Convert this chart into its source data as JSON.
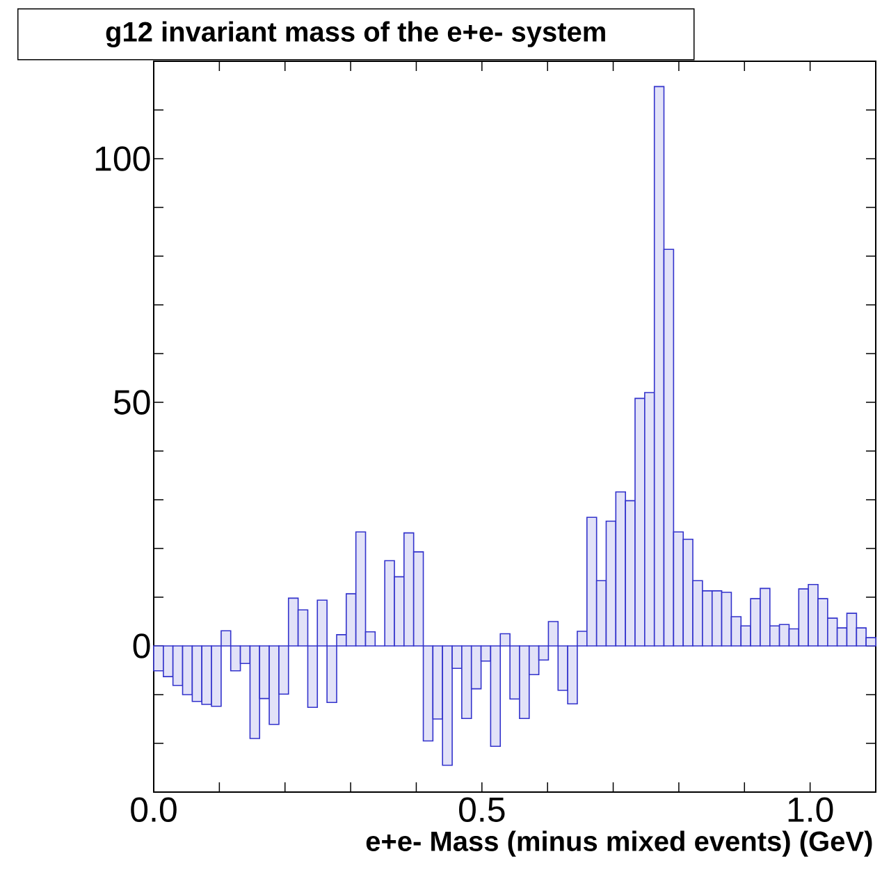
{
  "chart_data": {
    "type": "histogram",
    "title": "g12 invariant mass of the e+e- system",
    "xlabel": "e+e- Mass (minus mixed events) (GeV)",
    "bins": [
      0.0,
      0.0147,
      0.0293,
      0.044,
      0.0587,
      0.0733,
      0.088,
      0.1027,
      0.1173,
      0.132,
      0.1467,
      0.1613,
      0.176,
      0.1907,
      0.2053,
      0.22,
      0.2347,
      0.2493,
      0.264,
      0.2787,
      0.2933,
      0.308,
      0.3227,
      0.3373,
      0.352,
      0.3667,
      0.3813,
      0.396,
      0.4107,
      0.4253,
      0.44,
      0.4547,
      0.4693,
      0.484,
      0.4987,
      0.5133,
      0.528,
      0.5427,
      0.5573,
      0.572,
      0.5867,
      0.6013,
      0.616,
      0.6307,
      0.6453,
      0.66,
      0.6747,
      0.6893,
      0.704,
      0.7187,
      0.7333,
      0.748,
      0.7627,
      0.7773,
      0.792,
      0.8067,
      0.8213,
      0.836,
      0.8507,
      0.8653,
      0.88,
      0.8947,
      0.9093,
      0.924,
      0.9387,
      0.9533,
      0.968,
      0.9827,
      0.9973,
      1.012,
      1.0267,
      1.0413,
      1.056,
      1.0707,
      1.0853,
      1.1
    ],
    "values": [
      -5.1,
      -6.3,
      -8.1,
      -10,
      -11.4,
      -12,
      -12.4,
      3.1,
      -5.1,
      -3.6,
      -19,
      -10.8,
      -16.1,
      -9.9,
      9.8,
      7.4,
      -12.6,
      9.4,
      -11.6,
      2.3,
      10.7,
      23.4,
      2.9,
      0,
      17.5,
      14.2,
      23.2,
      19.3,
      -19.5,
      -15,
      -24.5,
      -4.6,
      -14.9,
      -8.8,
      -3.1,
      -20.6,
      2.5,
      -10.9,
      -14.9,
      -5.9,
      -2.9,
      5,
      -9.1,
      -11.9,
      3,
      26.4,
      13.4,
      25.6,
      31.6,
      29.8,
      50.8,
      52,
      114.8,
      81.4,
      23.4,
      21.9,
      13.4,
      11.3,
      11.3,
      11,
      6,
      4.1,
      9.7,
      11.8,
      4.1,
      4.4,
      3.5,
      11.7,
      12.6,
      9.7,
      5.7,
      3.7,
      6.7,
      3.7,
      1.7
    ],
    "color": "#3333cc",
    "xlim": [
      0,
      1.1
    ],
    "ylim": [
      -30,
      120
    ],
    "xticks": [
      {
        "value": 0,
        "label": "0.0"
      },
      {
        "value": 0.1,
        "label": null
      },
      {
        "value": 0.2,
        "label": null
      },
      {
        "value": 0.3,
        "label": null
      },
      {
        "value": 0.4,
        "label": null
      },
      {
        "value": 0.5,
        "label": "0.5"
      },
      {
        "value": 0.6,
        "label": null
      },
      {
        "value": 0.7,
        "label": null
      },
      {
        "value": 0.8,
        "label": null
      },
      {
        "value": 0.9,
        "label": null
      },
      {
        "value": 1.0,
        "label": "1.0"
      }
    ],
    "yticks": [
      {
        "value": -20,
        "label": null
      },
      {
        "value": -10,
        "label": null
      },
      0,
      {
        "value": 10,
        "label": null
      },
      {
        "value": 20,
        "label": null
      },
      {
        "value": 30,
        "label": null
      },
      {
        "value": 40,
        "label": null
      },
      50,
      {
        "value": 60,
        "label": null
      },
      {
        "value": 70,
        "label": null
      },
      {
        "value": 80,
        "label": null
      },
      {
        "value": 90,
        "label": null
      },
      100,
      {
        "value": 110,
        "label": null
      }
    ]
  }
}
